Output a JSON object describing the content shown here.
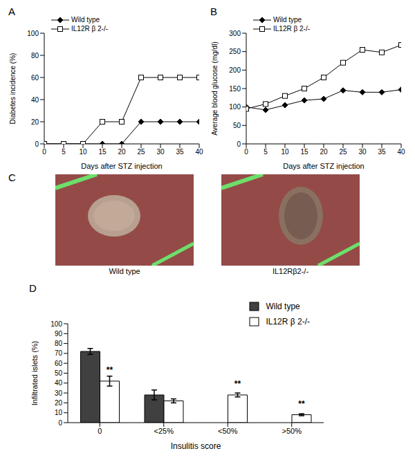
{
  "chart_data": [
    {
      "type": "line",
      "title": "A",
      "x_label": "Days after STZ injection",
      "y_label": "Diabetes incidence (%)",
      "x": [
        0,
        5,
        10,
        15,
        20,
        25,
        30,
        35,
        40
      ],
      "xlim": [
        0,
        40
      ],
      "xticks": [
        0,
        5,
        10,
        15,
        20,
        25,
        30,
        35,
        40
      ],
      "ylim": [
        0,
        100
      ],
      "yticks": [
        0,
        20,
        40,
        60,
        80,
        100
      ],
      "legend": "upper left",
      "grid": false,
      "series": [
        {
          "name": "Wild type",
          "color": "#000000",
          "marker": "diamond",
          "values": [
            0,
            0,
            0,
            0,
            0,
            20,
            20,
            20,
            20
          ]
        },
        {
          "name": "IL12R β 2-/-",
          "color": "#000000",
          "marker": "square_open",
          "values": [
            0,
            0,
            0,
            20,
            20,
            60,
            60,
            60,
            60
          ]
        }
      ]
    },
    {
      "type": "line",
      "title": "B",
      "x_label": "Days after STZ injection",
      "y_label": "Average blood glucose (mg/dl)",
      "x": [
        0,
        5,
        10,
        15,
        20,
        25,
        30,
        35,
        40
      ],
      "xlim": [
        0,
        40
      ],
      "xticks": [
        0,
        5,
        10,
        15,
        20,
        25,
        30,
        35,
        40
      ],
      "ylim": [
        0,
        300
      ],
      "yticks": [
        0,
        50,
        100,
        150,
        200,
        250,
        300
      ],
      "legend": "upper left",
      "grid": false,
      "series": [
        {
          "name": "Wild type",
          "color": "#000000",
          "marker": "diamond",
          "values": [
            100,
            92,
            105,
            118,
            122,
            145,
            140,
            140,
            147
          ]
        },
        {
          "name": "IL12R β 2-/-",
          "color": "#000000",
          "marker": "square_open",
          "values": [
            95,
            108,
            130,
            150,
            180,
            220,
            255,
            248,
            268
          ]
        }
      ]
    },
    {
      "type": "image",
      "title": "C",
      "captions": [
        "Wild type",
        "IL12Rβ2-/-"
      ]
    },
    {
      "type": "bar",
      "title": "D",
      "x_label": "Insulitis score",
      "y_label": "Infiltrated islets (%)",
      "categories": [
        "0",
        "<25%",
        "<50%",
        ">50%"
      ],
      "ylim": [
        0,
        100
      ],
      "yticks": [
        0,
        10,
        20,
        30,
        40,
        50,
        60,
        70,
        80,
        90,
        100
      ],
      "legend": "upper right",
      "grid": false,
      "series": [
        {
          "name": "Wild type",
          "color": "#404040",
          "values": [
            72,
            28,
            0,
            0
          ],
          "errors": [
            3,
            5,
            0,
            0
          ]
        },
        {
          "name": "IL12R β 2-/-",
          "color": "#ffffff",
          "values": [
            42,
            22,
            28,
            8
          ],
          "errors": [
            5,
            2,
            2,
            1
          ]
        }
      ],
      "annotations": [
        {
          "series": "IL12R β 2-/-",
          "category": "0",
          "text": "**"
        },
        {
          "series": "IL12R β 2-/-",
          "category": "<50%",
          "text": "**"
        },
        {
          "series": "IL12R β 2-/-",
          "category": ">50%",
          "text": "**"
        }
      ]
    }
  ]
}
